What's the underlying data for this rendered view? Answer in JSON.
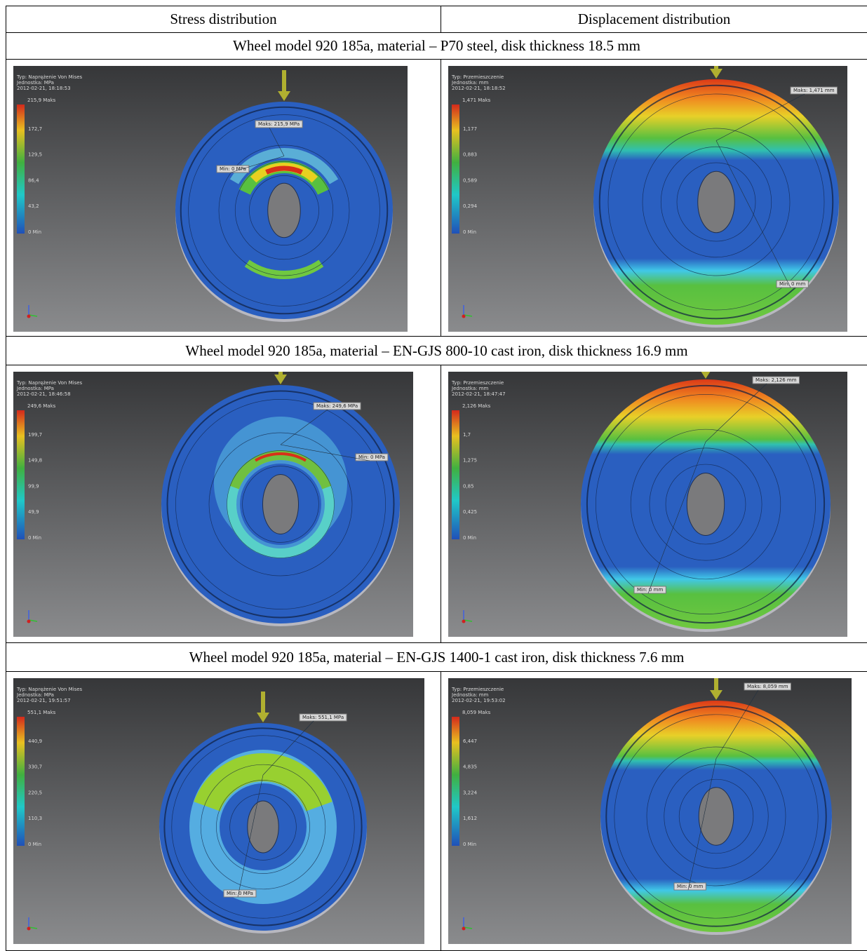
{
  "header": [
    "Stress distribution",
    "Displacement distribution"
  ],
  "sections": [
    {
      "title": "Wheel model 920 185a, material – P70 steel, disk thickness 18.5 mm",
      "stress": {
        "type": "Typ: Naprężenie Von Mises",
        "unit": "Jednostka: MPa",
        "date": "2012-02-21, 18:18:53",
        "legend": [
          "215,9 Maks",
          "172,7",
          "129,5",
          "86,4",
          "43,2",
          "0 Min"
        ],
        "max_label": "Maks: 215,9 MPa",
        "min_label": "Min: 0 MPa"
      },
      "displacement": {
        "type": "Typ: Przemieszczenie",
        "unit": "Jednostka: mm",
        "date": "2012-02-21, 18:18:52",
        "legend": [
          "1,471 Maks",
          "1,177",
          "0,883",
          "0,589",
          "0,294",
          "0 Min"
        ],
        "max_label": "Maks: 1,471 mm",
        "min_label": "Min: 0 mm"
      }
    },
    {
      "title": "Wheel model 920 185a, material – EN-GJS 800-10 cast iron, disk thickness 16.9 mm",
      "stress": {
        "type": "Typ: Naprężenie Von Mises",
        "unit": "Jednostka: MPa",
        "date": "2012-02-21, 18:46:58",
        "legend": [
          "249,6 Maks",
          "199,7",
          "149,8",
          "99,9",
          "49,9",
          "0 Min"
        ],
        "max_label": "Maks: 249,6 MPa",
        "min_label": "Min: 0 MPa"
      },
      "displacement": {
        "type": "Typ: Przemieszczenie",
        "unit": "Jednostka: mm",
        "date": "2012-02-21, 18:47:47",
        "legend": [
          "2,126 Maks",
          "1,7",
          "1,275",
          "0,85",
          "0,425",
          "0 Min"
        ],
        "max_label": "Maks: 2,126 mm",
        "min_label": "Min: 0 mm"
      }
    },
    {
      "title": "Wheel model 920 185a, material – EN-GJS 1400-1 cast iron, disk thickness 7.6 mm",
      "stress": {
        "type": "Typ: Naprężenie Von Mises",
        "unit": "Jednostka: MPa",
        "date": "2012-02-21, 19:51:57",
        "legend": [
          "551,1 Maks",
          "440,9",
          "330,7",
          "220,5",
          "110,3",
          "0 Min"
        ],
        "max_label": "Maks: 551,1 MPa",
        "min_label": "Min: 0 MPa"
      },
      "displacement": {
        "type": "Typ: Przemieszczenie",
        "unit": "Jednostka: mm",
        "date": "2012-02-21, 19:53:02",
        "legend": [
          "8,059 Maks",
          "6,447",
          "4,835",
          "3,224",
          "1,612",
          "0 Min"
        ],
        "max_label": "Maks: 8,059 mm",
        "min_label": "Min: 0 mm"
      }
    }
  ]
}
